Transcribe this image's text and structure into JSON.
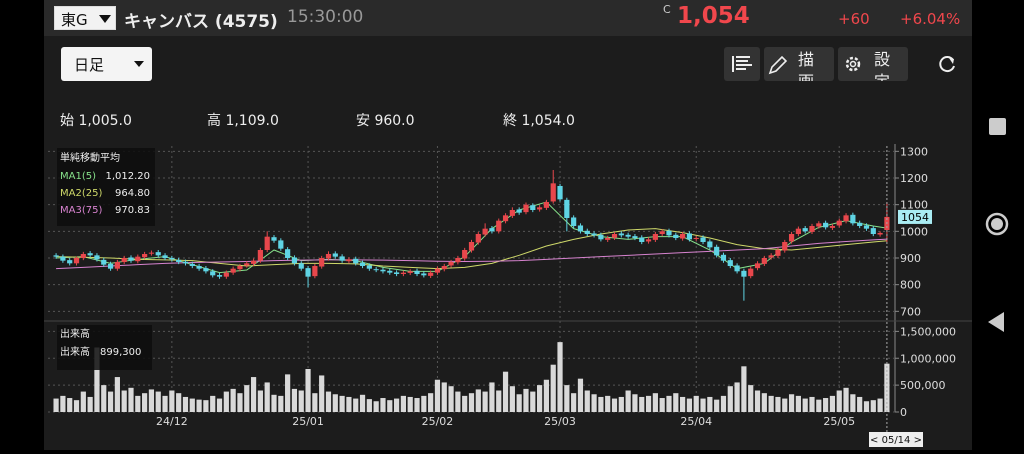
{
  "header": {
    "exchange": "東G",
    "name": "キャンバス (4575)",
    "time": "15:30:00",
    "price_flag": "C",
    "price": "1,054",
    "change": "+60",
    "change_pct": "+6.04%"
  },
  "toolbar": {
    "period": "日足",
    "draw": "描画",
    "settings": "設定"
  },
  "summary": {
    "open_label": "始",
    "open": "1,005.0",
    "high_label": "高",
    "high": "1,109.0",
    "low_label": "安",
    "low": "960.0",
    "close_label": "終",
    "close": "1,054.0"
  },
  "chart_data": {
    "type": "candlestick",
    "up_color": "#e8474c",
    "down_color": "#5fd4e4",
    "grid": true,
    "xlim": [
      -0.6,
      122.6
    ],
    "xticks": [
      {
        "value": 17,
        "label": "24/12"
      },
      {
        "value": 37,
        "label": "25/01"
      },
      {
        "value": 56,
        "label": "25/02"
      },
      {
        "value": 74,
        "label": "25/03"
      },
      {
        "value": 94,
        "label": "25/04"
      },
      {
        "value": 115,
        "label": "25/05"
      }
    ],
    "ylim": [
      675,
      1320
    ],
    "yticks": [
      700,
      800,
      900,
      1000,
      1100,
      1200,
      1300
    ],
    "cursor_label": "< 05/14 >",
    "open": [
      910,
      905,
      892,
      880,
      900,
      918,
      910,
      893,
      878,
      860,
      885,
      902,
      888,
      903,
      917,
      922,
      910,
      900,
      893,
      886,
      878,
      870,
      862,
      850,
      836,
      830,
      845,
      858,
      872,
      878,
      890,
      930,
      978,
      966,
      933,
      902,
      880,
      862,
      832,
      868,
      898,
      917,
      906,
      888,
      897,
      882,
      872,
      858,
      856,
      852,
      846,
      840,
      844,
      852,
      842,
      833,
      845,
      858,
      872,
      884,
      898,
      928,
      958,
      988,
      1012,
      1000,
      1038,
      1058,
      1082,
      1072,
      1098,
      1082,
      1088,
      1112,
      1170,
      1118,
      1052,
      1022,
      1002,
      992,
      987,
      968,
      976,
      992,
      987,
      982,
      977,
      962,
      968,
      990,
      1002,
      987,
      973,
      992,
      972,
      977,
      962,
      942,
      912,
      892,
      872,
      852,
      832,
      862,
      878,
      902,
      908,
      928,
      962,
      990,
      1012,
      998,
      1018,
      1032,
      1013,
      1022,
      1038,
      1062,
      1032,
      1022,
      1012,
      988,
      1005
    ],
    "high": [
      918,
      913,
      900,
      905,
      923,
      926,
      918,
      901,
      886,
      893,
      908,
      910,
      913,
      923,
      928,
      930,
      918,
      908,
      901,
      894,
      886,
      878,
      870,
      858,
      844,
      853,
      868,
      878,
      888,
      898,
      938,
      1000,
      986,
      974,
      941,
      910,
      888,
      870,
      878,
      908,
      925,
      925,
      914,
      903,
      905,
      890,
      880,
      866,
      864,
      860,
      854,
      853,
      858,
      860,
      850,
      853,
      868,
      878,
      893,
      908,
      938,
      968,
      998,
      1030,
      1020,
      1048,
      1068,
      1090,
      1090,
      1108,
      1105,
      1098,
      1118,
      1230,
      1178,
      1126,
      1060,
      1030,
      1010,
      1000,
      995,
      983,
      998,
      1000,
      995,
      990,
      985,
      978,
      998,
      1008,
      1010,
      995,
      998,
      1000,
      983,
      985,
      970,
      950,
      920,
      900,
      880,
      860,
      868,
      888,
      908,
      918,
      938,
      968,
      998,
      1018,
      1020,
      1028,
      1038,
      1040,
      1028,
      1048,
      1068,
      1070,
      1040,
      1030,
      1020,
      1000,
      1109
    ],
    "low": [
      897,
      882,
      872,
      872,
      892,
      902,
      887,
      867,
      852,
      852,
      877,
      882,
      880,
      895,
      909,
      902,
      892,
      887,
      877,
      872,
      862,
      852,
      842,
      827,
      822,
      822,
      837,
      850,
      864,
      870,
      882,
      922,
      957,
      927,
      892,
      872,
      852,
      790,
      824,
      860,
      890,
      897,
      882,
      880,
      872,
      862,
      852,
      847,
      842,
      837,
      832,
      832,
      836,
      832,
      827,
      825,
      837,
      850,
      864,
      876,
      890,
      920,
      950,
      980,
      992,
      992,
      1030,
      1050,
      1062,
      1064,
      1072,
      1074,
      1080,
      1104,
      1112,
      1000,
      1012,
      992,
      982,
      977,
      962,
      960,
      968,
      977,
      972,
      967,
      952,
      954,
      960,
      982,
      977,
      967,
      965,
      962,
      964,
      952,
      932,
      902,
      882,
      862,
      842,
      740,
      824,
      854,
      870,
      894,
      900,
      920,
      954,
      982,
      992,
      990,
      1010,
      1007,
      1005,
      1014,
      1030,
      1022,
      1012,
      1002,
      982,
      980,
      960
    ],
    "close": [
      905,
      890,
      880,
      900,
      915,
      910,
      895,
      875,
      860,
      885,
      900,
      890,
      905,
      915,
      920,
      910,
      900,
      895,
      885,
      880,
      870,
      860,
      850,
      835,
      830,
      845,
      860,
      870,
      880,
      890,
      930,
      980,
      965,
      935,
      900,
      880,
      860,
      830,
      870,
      900,
      915,
      905,
      890,
      895,
      880,
      870,
      860,
      855,
      850,
      845,
      840,
      845,
      850,
      840,
      835,
      845,
      860,
      870,
      885,
      900,
      930,
      960,
      990,
      1010,
      1000,
      1040,
      1060,
      1080,
      1070,
      1100,
      1080,
      1090,
      1110,
      1180,
      1120,
      1050,
      1020,
      1000,
      990,
      985,
      970,
      975,
      990,
      985,
      980,
      975,
      960,
      970,
      990,
      1000,
      985,
      975,
      990,
      970,
      975,
      960,
      940,
      910,
      890,
      870,
      850,
      830,
      860,
      880,
      900,
      910,
      930,
      960,
      990,
      1010,
      1000,
      1020,
      1030,
      1015,
      1020,
      1040,
      1060,
      1030,
      1020,
      1010,
      990,
      994,
      1054
    ],
    "indicators": {
      "title": "単純移動平均",
      "x": [
        0,
        4,
        8,
        12,
        16,
        20,
        24,
        28,
        32,
        36,
        40,
        44,
        48,
        52,
        56,
        60,
        64,
        68,
        72,
        76,
        80,
        84,
        88,
        92,
        96,
        100,
        104,
        108,
        112,
        116,
        120,
        122
      ],
      "series": [
        {
          "name": "MA1(5)",
          "color": "#86e08a",
          "value_label": "1,012.20",
          "values": [
            900,
            905,
            880,
            895,
            905,
            875,
            845,
            855,
            930,
            890,
            895,
            890,
            865,
            850,
            850,
            905,
            1010,
            1080,
            1110,
            1010,
            980,
            970,
            980,
            980,
            930,
            860,
            880,
            960,
            1015,
            1040,
            1020,
            1012.2
          ]
        },
        {
          "name": "MA2(25)",
          "color": "#cfd96a",
          "value_label": "964.80",
          "values": [
            905,
            903,
            900,
            895,
            893,
            890,
            880,
            870,
            875,
            880,
            880,
            878,
            870,
            865,
            860,
            865,
            880,
            910,
            945,
            970,
            990,
            1005,
            1010,
            995,
            975,
            950,
            935,
            930,
            940,
            950,
            960,
            964.8
          ]
        },
        {
          "name": "MA3(75)",
          "color": "#d783cf",
          "value_label": "970.83",
          "values": [
            860,
            865,
            870,
            875,
            880,
            883,
            885,
            887,
            890,
            892,
            893,
            893,
            892,
            890,
            888,
            887,
            888,
            890,
            895,
            900,
            905,
            910,
            915,
            920,
            925,
            930,
            935,
            945,
            955,
            962,
            968,
            970.83
          ]
        }
      ]
    },
    "volume": {
      "title": "出来高",
      "label_name": "出来高",
      "label_value": "899,300",
      "color": "#d9d9d9",
      "ylim": [
        0,
        1600000
      ],
      "yticks": [
        0,
        {
          "value": 500000,
          "label": "500,000"
        },
        {
          "value": 1000000,
          "label": "1,000,000"
        },
        {
          "value": 1500000,
          "label": "1,500,000"
        }
      ],
      "values": [
        250000,
        300000,
        260000,
        220000,
        380000,
        280000,
        1200000,
        500000,
        380000,
        650000,
        400000,
        450000,
        300000,
        350000,
        420000,
        380000,
        300000,
        400000,
        350000,
        280000,
        250000,
        230000,
        220000,
        300000,
        250000,
        380000,
        430000,
        350000,
        500000,
        650000,
        400000,
        550000,
        320000,
        300000,
        700000,
        430000,
        400000,
        800000,
        350000,
        680000,
        380000,
        330000,
        300000,
        280000,
        250000,
        320000,
        240000,
        200000,
        260000,
        220000,
        250000,
        300000,
        280000,
        260000,
        300000,
        350000,
        600000,
        550000,
        480000,
        380000,
        300000,
        350000,
        420000,
        380000,
        550000,
        400000,
        750000,
        480000,
        330000,
        430000,
        380000,
        500000,
        600000,
        880000,
        1300000,
        500000,
        350000,
        620000,
        400000,
        330000,
        280000,
        300000,
        250000,
        280000,
        400000,
        330000,
        280000,
        300000,
        350000,
        260000,
        300000,
        350000,
        280000,
        250000,
        300000,
        250000,
        280000,
        230000,
        300000,
        480000,
        550000,
        850000,
        500000,
        400000,
        350000,
        300000,
        280000,
        250000,
        330000,
        300000,
        250000,
        280000,
        230000,
        260000,
        300000,
        400000,
        450000,
        330000,
        280000,
        200000,
        220000,
        250000,
        899300
      ]
    }
  }
}
